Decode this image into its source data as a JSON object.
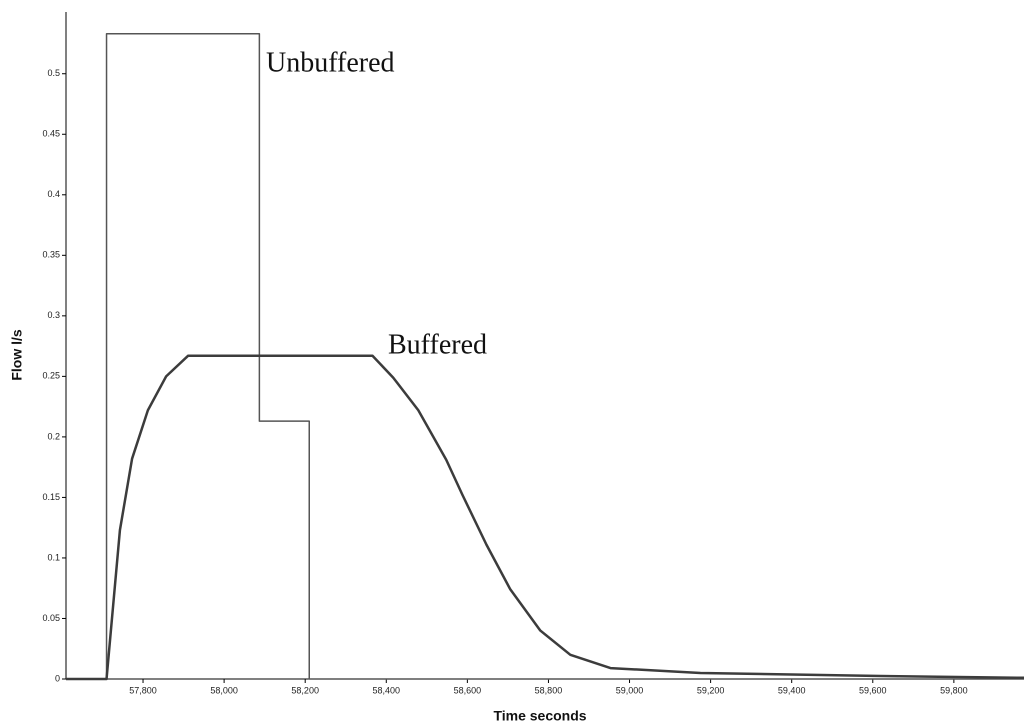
{
  "chart_data": {
    "type": "line",
    "x_label": "Time seconds",
    "y_label": "Flow l/s",
    "xlim": [
      57610,
      59973
    ],
    "ylim": [
      0,
      0.551
    ],
    "xticks": [
      {
        "value": 57800,
        "label": "57,800"
      },
      {
        "value": 58000,
        "label": "58,000"
      },
      {
        "value": 58200,
        "label": "58,200"
      },
      {
        "value": 58400,
        "label": "58,400"
      },
      {
        "value": 58600,
        "label": "58,600"
      },
      {
        "value": 58800,
        "label": "58,800"
      },
      {
        "value": 59000,
        "label": "59,000"
      },
      {
        "value": 59200,
        "label": "59,200"
      },
      {
        "value": 59400,
        "label": "59,400"
      },
      {
        "value": 59600,
        "label": "59,600"
      },
      {
        "value": 59800,
        "label": "59,800"
      }
    ],
    "yticks": [
      0,
      0.05,
      0.1,
      0.15,
      0.2,
      0.25,
      0.3,
      0.35,
      0.4,
      0.45,
      0.5
    ],
    "grid": false,
    "series": [
      {
        "name": "Unbuffered",
        "color": "#555555",
        "x": [
          57610,
          57710,
          57710,
          58087,
          58087,
          58210,
          58210,
          59973
        ],
        "values": [
          0,
          0,
          0.533,
          0.533,
          0.213,
          0.213,
          0,
          0
        ]
      },
      {
        "name": "Buffered",
        "color": "#3c3c3c",
        "x": [
          57610,
          57710,
          57743,
          57773,
          57812,
          57857,
          57911,
          58366,
          58417,
          58479,
          58548,
          58588,
          58647,
          58706,
          58780,
          58854,
          58953,
          59175,
          59620,
          59973
        ],
        "values": [
          0,
          0,
          0.123,
          0.182,
          0.222,
          0.25,
          0.267,
          0.267,
          0.249,
          0.222,
          0.181,
          0.152,
          0.111,
          0.074,
          0.04,
          0.02,
          0.009,
          0.005,
          0.0025,
          0.001
        ]
      }
    ]
  }
}
